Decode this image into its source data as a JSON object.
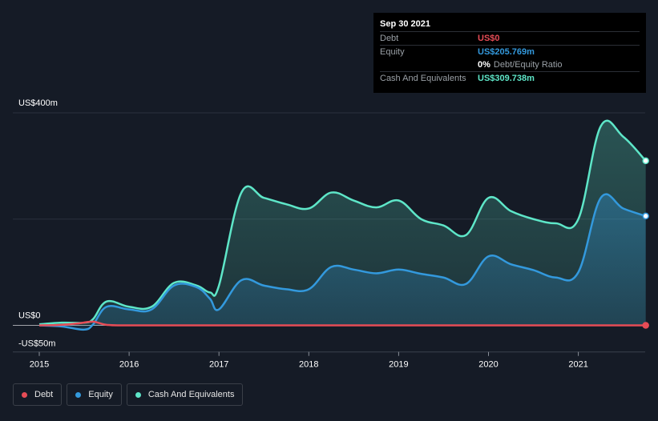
{
  "tooltip": {
    "date": "Sep 30 2021",
    "rows": [
      {
        "label": "Debt",
        "value": "US$0",
        "color": "#e64c56"
      },
      {
        "label": "Equity",
        "value": "US$205.769m",
        "color": "#3399dd"
      },
      {
        "label": "",
        "value": "0%",
        "sub": "Debt/Equity Ratio",
        "color": "#ffffff"
      },
      {
        "label": "Cash And Equivalents",
        "value": "US$309.738m",
        "color": "#5ee6c8"
      }
    ]
  },
  "legend": [
    {
      "label": "Debt",
      "color": "#e64c56"
    },
    {
      "label": "Equity",
      "color": "#3399dd"
    },
    {
      "label": "Cash And Equivalents",
      "color": "#5ee6c8"
    }
  ],
  "chart_data": {
    "type": "area",
    "y_tick_labels": [
      "US$400m",
      "US$0",
      "-US$50m"
    ],
    "x_tick_labels": [
      "2015",
      "2016",
      "2017",
      "2018",
      "2019",
      "2020",
      "2021"
    ],
    "ylim": [
      -50,
      400
    ],
    "grid": true,
    "legend_position": "bottom-left",
    "series": [
      {
        "name": "Debt",
        "color": "#e64c56",
        "x": [
          2015.0,
          2015.25,
          2015.45,
          2015.6,
          2015.75,
          2016.0,
          2017.0,
          2018.0,
          2019.0,
          2020.0,
          2021.0,
          2021.75
        ],
        "y": [
          0,
          1,
          4,
          7,
          1,
          0,
          0,
          0,
          0,
          0,
          0,
          0
        ]
      },
      {
        "name": "Equity",
        "color": "#3399dd",
        "x": [
          2015.0,
          2015.25,
          2015.5,
          2015.6,
          2015.75,
          2016.0,
          2016.25,
          2016.5,
          2016.75,
          2016.9,
          2017.0,
          2017.25,
          2017.5,
          2017.75,
          2018.0,
          2018.25,
          2018.5,
          2018.75,
          2019.0,
          2019.25,
          2019.5,
          2019.75,
          2020.0,
          2020.25,
          2020.5,
          2020.75,
          2021.0,
          2021.25,
          2021.5,
          2021.75
        ],
        "y": [
          0,
          -2,
          -8,
          2,
          35,
          30,
          30,
          75,
          72,
          50,
          30,
          85,
          75,
          68,
          68,
          110,
          105,
          98,
          105,
          97,
          90,
          78,
          130,
          115,
          104,
          90,
          100,
          240,
          220,
          205.769
        ]
      },
      {
        "name": "Cash And Equivalents",
        "color": "#5ee6c8",
        "x": [
          2015.0,
          2015.25,
          2015.5,
          2015.6,
          2015.75,
          2016.0,
          2016.25,
          2016.5,
          2016.75,
          2016.9,
          2017.0,
          2017.25,
          2017.5,
          2017.75,
          2018.0,
          2018.25,
          2018.5,
          2018.75,
          2019.0,
          2019.25,
          2019.5,
          2019.75,
          2020.0,
          2020.25,
          2020.5,
          2020.75,
          2021.0,
          2021.25,
          2021.5,
          2021.75
        ],
        "y": [
          2,
          5,
          5,
          12,
          45,
          35,
          35,
          80,
          75,
          62,
          75,
          250,
          240,
          228,
          220,
          250,
          235,
          222,
          235,
          200,
          188,
          170,
          240,
          215,
          200,
          192,
          200,
          375,
          355,
          309.738
        ]
      }
    ]
  }
}
